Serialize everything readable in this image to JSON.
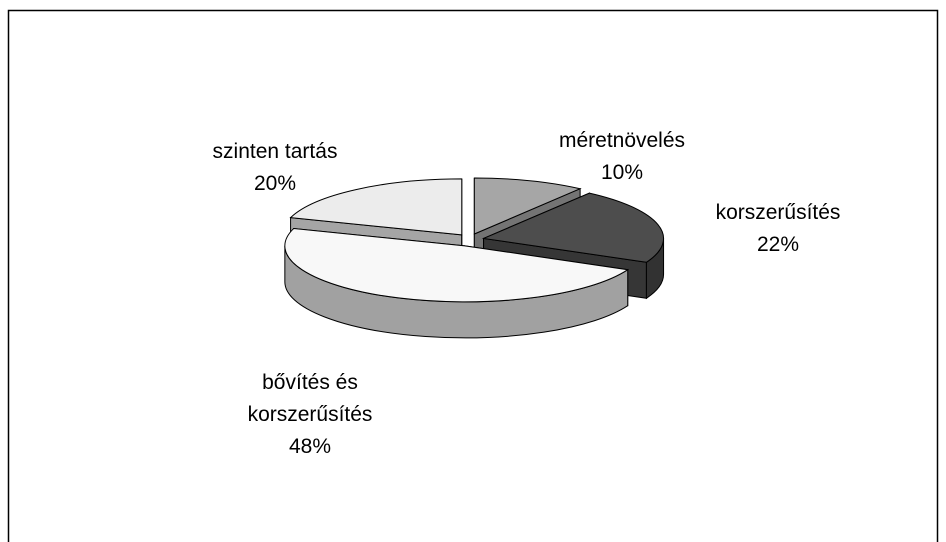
{
  "chart_data": {
    "type": "pie",
    "categories": [
      "méretnövelés",
      "korszerűsítés",
      "bővítés és korszerűsítés",
      "szinten tartás"
    ],
    "values": [
      10,
      22,
      48,
      20
    ],
    "value_labels": [
      "10%",
      "22%",
      "48%",
      "20%"
    ],
    "colors": [
      "#a6a6a6",
      "#4d4d4d",
      "#f8f8f8",
      "#ececec"
    ]
  }
}
